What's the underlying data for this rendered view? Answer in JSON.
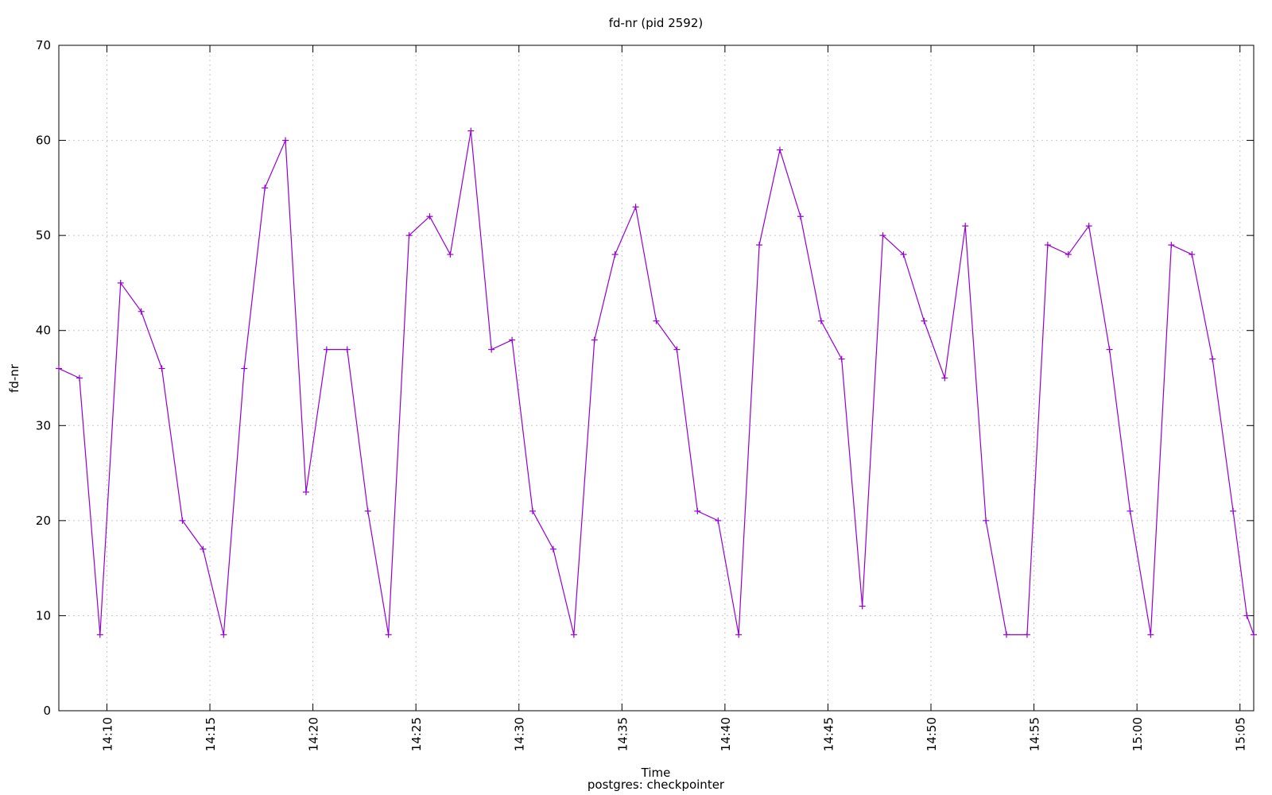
{
  "chart_data": {
    "type": "line",
    "title": "fd-nr (pid 2592)",
    "xlabel": "Time",
    "subtitle": "postgres: checkpointer",
    "ylabel": "fd-nr",
    "ylim": [
      0,
      70
    ],
    "yticks": [
      0,
      10,
      20,
      30,
      40,
      50,
      60,
      70
    ],
    "xlim": [
      "14:07:40",
      "15:05:40"
    ],
    "xticks": [
      "14:10",
      "14:15",
      "14:20",
      "14:25",
      "14:30",
      "14:35",
      "14:40",
      "14:45",
      "14:50",
      "14:55",
      "15:00",
      "15:05"
    ],
    "grid": true,
    "legend": "none",
    "series_color": "#9400d3",
    "series": [
      {
        "x": [
          "14:07:40",
          "14:08:40",
          "14:09:40",
          "14:10:40",
          "14:11:40",
          "14:12:40",
          "14:13:40",
          "14:14:40",
          "14:15:40",
          "14:16:40",
          "14:17:40",
          "14:18:40",
          "14:19:40",
          "14:20:40",
          "14:21:40",
          "14:22:40",
          "14:23:40",
          "14:24:40",
          "14:25:40",
          "14:26:40",
          "14:27:40",
          "14:28:40",
          "14:29:40",
          "14:30:40",
          "14:31:40",
          "14:32:40",
          "14:33:40",
          "14:34:40",
          "14:35:40",
          "14:36:40",
          "14:37:40",
          "14:38:40",
          "14:39:40",
          "14:40:40",
          "14:41:40",
          "14:42:40",
          "14:43:40",
          "14:44:40",
          "14:45:40",
          "14:46:40",
          "14:47:40",
          "14:48:40",
          "14:49:40",
          "14:50:40",
          "14:51:40",
          "14:52:40",
          "14:53:40",
          "14:54:40",
          "14:55:40",
          "14:56:40",
          "14:57:40",
          "14:58:40",
          "14:59:40",
          "15:00:40",
          "15:01:40",
          "15:02:40",
          "15:03:40",
          "15:04:40",
          "15:05:20",
          "15:05:40"
        ],
        "y": [
          36,
          35,
          8,
          45,
          42,
          36,
          20,
          17,
          8,
          36,
          55,
          60,
          23,
          38,
          38,
          21,
          8,
          50,
          52,
          48,
          61,
          38,
          39,
          21,
          17,
          8,
          39,
          48,
          53,
          41,
          38,
          21,
          20,
          8,
          49,
          59,
          52,
          41,
          37,
          11,
          50,
          48,
          41,
          35,
          51,
          20,
          8,
          8,
          49,
          48,
          51,
          38,
          21,
          8,
          49,
          48,
          37,
          21,
          10,
          8
        ]
      }
    ]
  }
}
